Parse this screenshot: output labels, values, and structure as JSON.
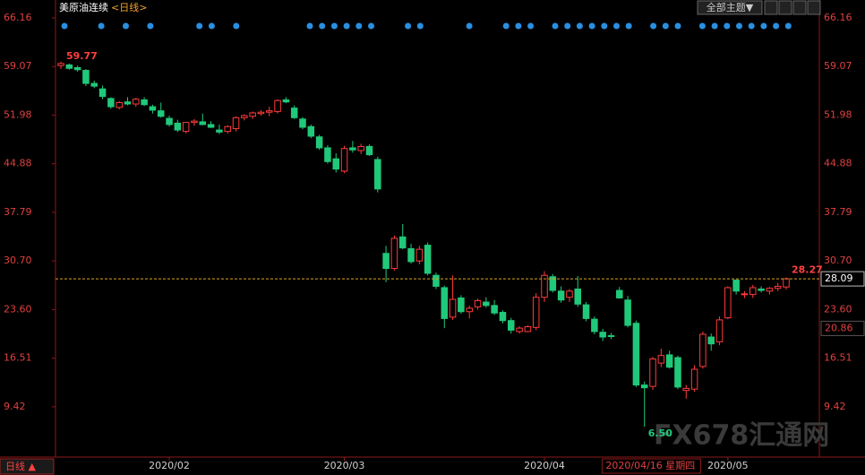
{
  "chart_data": {
    "type": "candlestick",
    "title": "美原油连续",
    "period": "<日线>",
    "theme_button": "全部主题▼",
    "period_button": "日线 ▲",
    "crosshair_date": "2020/04/16 星期四",
    "watermark": "FX678汇通网",
    "up_color": "#ff3b3b",
    "down_color": "#20c97a",
    "ylim": [
      3.0,
      67.2
    ],
    "yticks": [
      66.16,
      59.07,
      51.98,
      44.88,
      37.79,
      {
        "value": 30.7,
        "label": "30.70"
      },
      {
        "value": 23.6,
        "label": "23.60"
      },
      16.51,
      9.42
    ],
    "last_price": 28.09,
    "marker_price": 20.86,
    "low_label": {
      "value": 6.5,
      "label": "6.50"
    },
    "categories": [
      null,
      null,
      null,
      null,
      null,
      null,
      null,
      null,
      null,
      null,
      null,
      null,
      null,
      "2020/02",
      null,
      null,
      null,
      null,
      null,
      null,
      null,
      null,
      null,
      null,
      null,
      null,
      null,
      null,
      null,
      null,
      null,
      null,
      null,
      null,
      "2020/03",
      null,
      null,
      null,
      null,
      null,
      null,
      null,
      null,
      null,
      null,
      null,
      null,
      null,
      null,
      null,
      null,
      null,
      null,
      null,
      null,
      null,
      null,
      null,
      "2020/04",
      null,
      null,
      null,
      null,
      null,
      null,
      null,
      null,
      null,
      null,
      null,
      null,
      null,
      null,
      null,
      null,
      null,
      null,
      null,
      null,
      null,
      "2020/05",
      null,
      null,
      null,
      null,
      null,
      null,
      null
    ],
    "open": [
      59.2,
      59.3,
      58.9,
      58.5,
      56.6,
      55.8,
      54.4,
      53.1,
      53.9,
      53.6,
      54.2,
      53.2,
      52.6,
      51.5,
      50.8,
      49.6,
      50.9,
      51.0,
      50.6,
      49.8,
      49.6,
      50.0,
      51.6,
      51.8,
      52.2,
      52.4,
      52.5,
      54.2,
      53.0,
      51.4,
      50.3,
      48.8,
      47.2,
      45.6,
      43.8,
      47.2,
      46.8,
      47.4,
      45.5,
      31.8,
      29.6,
      34.2,
      32.5,
      30.7,
      33.0,
      28.6,
      26.8,
      22.5,
      25.3,
      23.3,
      24.0,
      24.7,
      24.2,
      23.2,
      22.0,
      20.4,
      20.4,
      21.0,
      25.4,
      28.4,
      26.3,
      25.4,
      26.6,
      24.3,
      22.2,
      20.3,
      19.8,
      26.4,
      25.0,
      21.6,
      12.6,
      12.4,
      15.8,
      17.0,
      16.6,
      11.8,
      12.0,
      15.3,
      19.6,
      18.9,
      22.4,
      27.9,
      25.8,
      25.8,
      26.6,
      26.3,
      26.7,
      26.9
    ],
    "high": [
      59.77,
      59.5,
      59.2,
      58.7,
      57.0,
      56.3,
      54.6,
      54.0,
      54.6,
      54.5,
      54.6,
      53.5,
      53.8,
      51.9,
      51.3,
      51.0,
      51.4,
      52.2,
      51.1,
      50.6,
      50.5,
      51.8,
      52.1,
      52.5,
      52.7,
      53.2,
      54.3,
      54.6,
      53.4,
      51.7,
      50.6,
      49.1,
      47.6,
      46.4,
      47.5,
      48.2,
      47.8,
      47.7,
      45.9,
      32.9,
      34.4,
      36.1,
      33.2,
      32.9,
      33.4,
      29.0,
      27.1,
      28.6,
      25.7,
      24.2,
      25.2,
      25.4,
      25.0,
      23.5,
      22.4,
      21.2,
      21.3,
      26.0,
      29.2,
      28.8,
      27.0,
      26.6,
      28.5,
      24.7,
      22.6,
      20.8,
      20.2,
      26.9,
      25.6,
      22.0,
      13.1,
      16.7,
      17.9,
      17.6,
      16.9,
      12.6,
      15.5,
      20.4,
      20.1,
      22.6,
      27.0,
      28.0,
      26.3,
      27.2,
      27.0,
      26.9,
      27.5,
      28.27
    ],
    "low": [
      58.7,
      58.6,
      58.3,
      56.2,
      55.9,
      54.3,
      52.9,
      52.8,
      53.4,
      53.2,
      53.3,
      52.2,
      51.6,
      50.3,
      49.5,
      49.3,
      50.4,
      50.5,
      50.1,
      49.2,
      49.3,
      49.6,
      51.2,
      51.4,
      51.9,
      51.8,
      52.2,
      53.7,
      51.4,
      49.9,
      48.6,
      46.9,
      44.9,
      43.6,
      43.5,
      46.5,
      46.3,
      46.0,
      40.7,
      27.6,
      29.3,
      32.4,
      30.3,
      30.2,
      28.6,
      26.6,
      20.9,
      22.1,
      23.0,
      22.3,
      23.6,
      23.9,
      22.8,
      21.6,
      20.1,
      20.1,
      20.3,
      20.6,
      24.7,
      26.1,
      24.6,
      24.7,
      24.0,
      21.9,
      20.0,
      19.0,
      19.3,
      25.2,
      21.0,
      12.3,
      6.5,
      11.9,
      15.2,
      15.0,
      12.0,
      10.6,
      11.6,
      15.0,
      17.6,
      18.4,
      22.2,
      25.8,
      25.3,
      25.3,
      26.1,
      25.8,
      26.3,
      26.5
    ],
    "close": [
      59.5,
      58.8,
      58.6,
      56.6,
      56.2,
      54.7,
      53.2,
      53.8,
      53.6,
      54.3,
      53.5,
      52.7,
      51.8,
      50.6,
      49.8,
      50.9,
      51.1,
      50.6,
      50.2,
      49.5,
      50.3,
      51.6,
      51.9,
      52.3,
      52.4,
      52.6,
      54.1,
      53.9,
      51.6,
      50.2,
      48.9,
      47.2,
      45.2,
      44.1,
      47.1,
      46.9,
      47.4,
      46.2,
      41.2,
      29.6,
      34.0,
      32.6,
      30.6,
      32.4,
      28.9,
      27.0,
      22.3,
      25.1,
      23.3,
      23.8,
      24.9,
      24.2,
      23.1,
      22.0,
      20.6,
      20.9,
      21.1,
      25.4,
      28.6,
      26.4,
      25.0,
      26.3,
      24.4,
      22.3,
      20.4,
      19.6,
      19.7,
      25.3,
      21.3,
      12.6,
      12.2,
      16.4,
      16.9,
      15.2,
      12.3,
      12.1,
      14.9,
      20.0,
      18.6,
      22.1,
      26.8,
      26.3,
      25.9,
      26.8,
      26.4,
      26.7,
      27.0,
      28.1
    ]
  }
}
